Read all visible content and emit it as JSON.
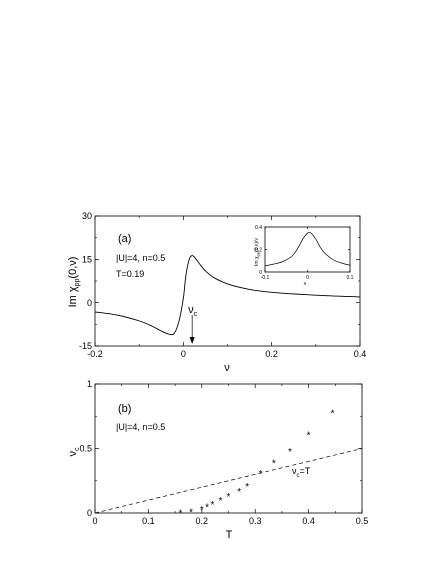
{
  "chart_data": [
    {
      "type": "line",
      "panel_label": "(a)",
      "annotations": [
        "|U|=4, n=0.5",
        "T=0.19"
      ],
      "arrow_label": "ν",
      "arrow_label_sub": "c",
      "arrow_x": 0.02,
      "xlabel": "ν",
      "ylabel": "Im χ",
      "ylabel_sub": "pp",
      "ylabel_tail": "(0,ν)",
      "xlim": [
        -0.2,
        0.4
      ],
      "ylim": [
        -15,
        30
      ],
      "xticks": [
        "-0.2",
        "0",
        "0.2",
        "0.4"
      ],
      "yticks": [
        "-15",
        "0",
        "15",
        "30"
      ],
      "series": [
        {
          "x": [
            -0.2,
            -0.15,
            -0.1,
            -0.07,
            -0.05,
            -0.03,
            -0.02,
            -0.01,
            0,
            0.005,
            0.01,
            0.015,
            0.02,
            0.025,
            0.03,
            0.04,
            0.05,
            0.07,
            0.1,
            0.15,
            0.2,
            0.3,
            0.4
          ],
          "y": [
            -3.2,
            -4.3,
            -6.3,
            -8.2,
            -9.8,
            -11.0,
            -10.5,
            -6.5,
            1.5,
            8.5,
            13.0,
            15.6,
            16.3,
            15.8,
            14.8,
            12.8,
            11.0,
            8.6,
            6.5,
            4.6,
            3.6,
            2.6,
            2.0
          ]
        }
      ],
      "inset": {
        "type": "line",
        "xlabel": "ν",
        "ylabel": "Im χ",
        "ylabel_sub": "pp",
        "ylabel_tail": "(0,ν)/ν",
        "xlim": [
          -0.1,
          0.1
        ],
        "ylim": [
          0,
          0.4
        ],
        "xticks": [
          "-0.1",
          "0",
          "0.1"
        ],
        "yticks": [
          "0",
          "0.2",
          "0.4"
        ],
        "x": [
          -0.1,
          -0.08,
          -0.06,
          -0.04,
          -0.03,
          -0.02,
          -0.01,
          0,
          0.005,
          0.01,
          0.02,
          0.03,
          0.04,
          0.06,
          0.08,
          0.1
        ],
        "y": [
          0.055,
          0.07,
          0.09,
          0.13,
          0.17,
          0.23,
          0.3,
          0.345,
          0.35,
          0.34,
          0.29,
          0.22,
          0.17,
          0.11,
          0.08,
          0.06
        ]
      }
    },
    {
      "type": "scatter",
      "panel_label": "(b)",
      "annotation": "|U|=4, n=0.5",
      "xlabel": "T",
      "ylabel": "ν",
      "ylabel_sub": "c",
      "xlim": [
        0,
        0.5
      ],
      "ylim": [
        0,
        1
      ],
      "xticks": [
        "0",
        "0.1",
        "0.2",
        "0.3",
        "0.4",
        "0.5"
      ],
      "yticks": [
        "0",
        "0.5",
        "1"
      ],
      "marker": "*",
      "points": {
        "x": [
          0.16,
          0.18,
          0.2,
          0.21,
          0.22,
          0.235,
          0.25,
          0.27,
          0.285,
          0.31,
          0.335,
          0.365,
          0.4,
          0.445
        ],
        "y": [
          0.005,
          0.01,
          0.03,
          0.05,
          0.07,
          0.1,
          0.13,
          0.17,
          0.21,
          0.31,
          0.39,
          0.48,
          0.61,
          0.78
        ]
      },
      "reference_line": {
        "label": "ν",
        "label_sub": "c",
        "label_tail": "=T",
        "x": [
          0,
          0.5
        ],
        "y": [
          0,
          0.5
        ]
      }
    }
  ]
}
